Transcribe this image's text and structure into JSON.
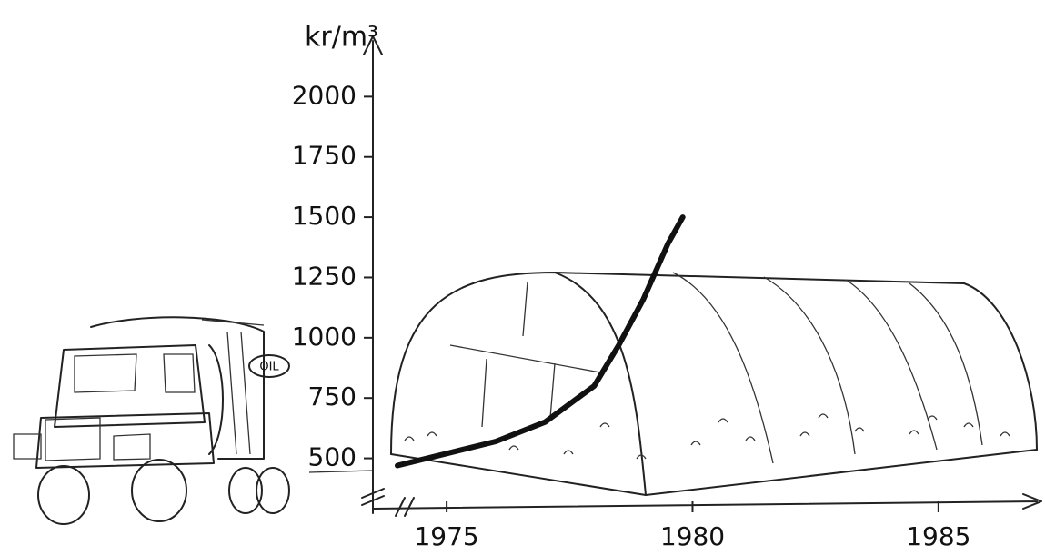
{
  "chart_data": {
    "type": "line",
    "y_label": "kr/m³",
    "truck_label": "OIL",
    "x": [
      1974,
      1975,
      1976,
      1977,
      1978,
      1978.5,
      1979,
      1979.5,
      1979.8
    ],
    "values": [
      470,
      520,
      570,
      650,
      800,
      970,
      1160,
      1390,
      1500
    ],
    "color": "#111111",
    "xlim": [
      1973.5,
      1987
    ],
    "xticks": [
      1975,
      1980,
      1985
    ],
    "ylim": [
      310,
      2250
    ],
    "yticks": [
      500,
      750,
      1000,
      1250,
      1500,
      1750,
      2000
    ]
  }
}
